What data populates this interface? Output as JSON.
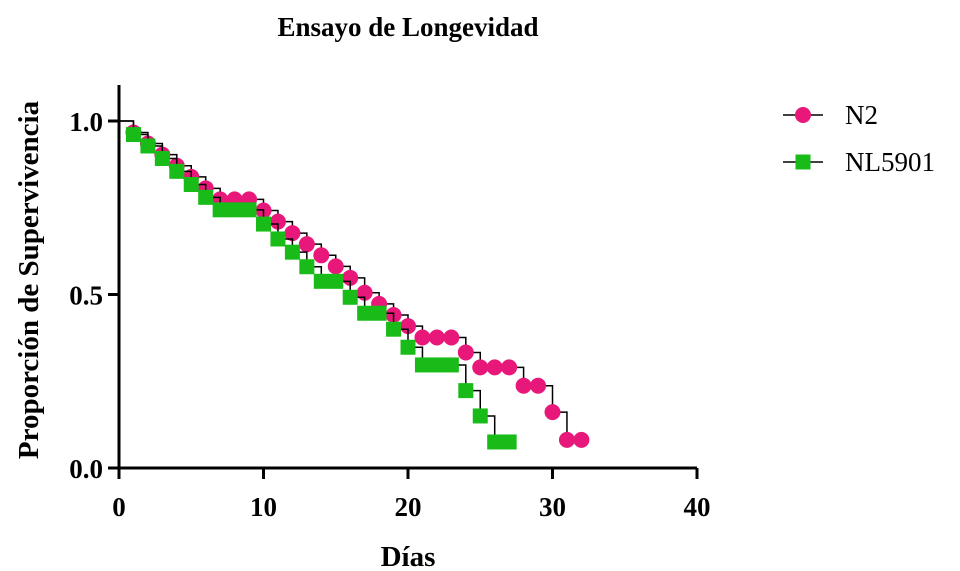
{
  "chart_data": {
    "type": "line",
    "title": "Ensayo de Longevidad",
    "xlabel": "Días",
    "ylabel": "Proporción de Supervivencia",
    "xlim": [
      0,
      40
    ],
    "ylim": [
      0,
      1.0
    ],
    "x_ticks": [
      "0",
      "10",
      "20",
      "30",
      "40"
    ],
    "y_ticks": [
      "0.0",
      "0.5",
      "1.0"
    ],
    "legend_position": "top-right",
    "step": true,
    "series": [
      {
        "name": "N2",
        "color": "#e8187a",
        "marker": "circle",
        "points": [
          [
            1,
            0.967
          ],
          [
            2,
            0.935
          ],
          [
            3,
            0.903
          ],
          [
            4,
            0.871
          ],
          [
            5,
            0.839
          ],
          [
            6,
            0.806
          ],
          [
            7,
            0.774
          ],
          [
            8,
            0.774
          ],
          [
            9,
            0.774
          ],
          [
            10,
            0.742
          ],
          [
            11,
            0.71
          ],
          [
            12,
            0.677
          ],
          [
            13,
            0.645
          ],
          [
            14,
            0.613
          ],
          [
            15,
            0.581
          ],
          [
            16,
            0.548
          ],
          [
            17,
            0.505
          ],
          [
            18,
            0.473
          ],
          [
            19,
            0.441
          ],
          [
            20,
            0.409
          ],
          [
            21,
            0.376
          ],
          [
            22,
            0.376
          ],
          [
            23,
            0.376
          ],
          [
            24,
            0.333
          ],
          [
            25,
            0.29
          ],
          [
            26,
            0.29
          ],
          [
            27,
            0.29
          ],
          [
            28,
            0.237
          ],
          [
            29,
            0.237
          ],
          [
            30,
            0.161
          ],
          [
            31,
            0.081
          ],
          [
            32,
            0.081
          ]
        ]
      },
      {
        "name": "NL5901",
        "color": "#19bb19",
        "marker": "square",
        "points": [
          [
            1,
            0.961
          ],
          [
            2,
            0.928
          ],
          [
            3,
            0.892
          ],
          [
            4,
            0.855
          ],
          [
            5,
            0.817
          ],
          [
            6,
            0.78
          ],
          [
            7,
            0.744
          ],
          [
            8,
            0.744
          ],
          [
            9,
            0.744
          ],
          [
            10,
            0.703
          ],
          [
            11,
            0.66
          ],
          [
            12,
            0.622
          ],
          [
            13,
            0.58
          ],
          [
            14,
            0.538
          ],
          [
            15,
            0.538
          ],
          [
            16,
            0.492
          ],
          [
            17,
            0.446
          ],
          [
            18,
            0.446
          ],
          [
            19,
            0.4
          ],
          [
            20,
            0.348
          ],
          [
            21,
            0.297
          ],
          [
            22,
            0.297
          ],
          [
            23,
            0.297
          ],
          [
            24,
            0.223
          ],
          [
            25,
            0.15
          ],
          [
            26,
            0.075
          ],
          [
            27,
            0.075
          ]
        ]
      }
    ]
  }
}
